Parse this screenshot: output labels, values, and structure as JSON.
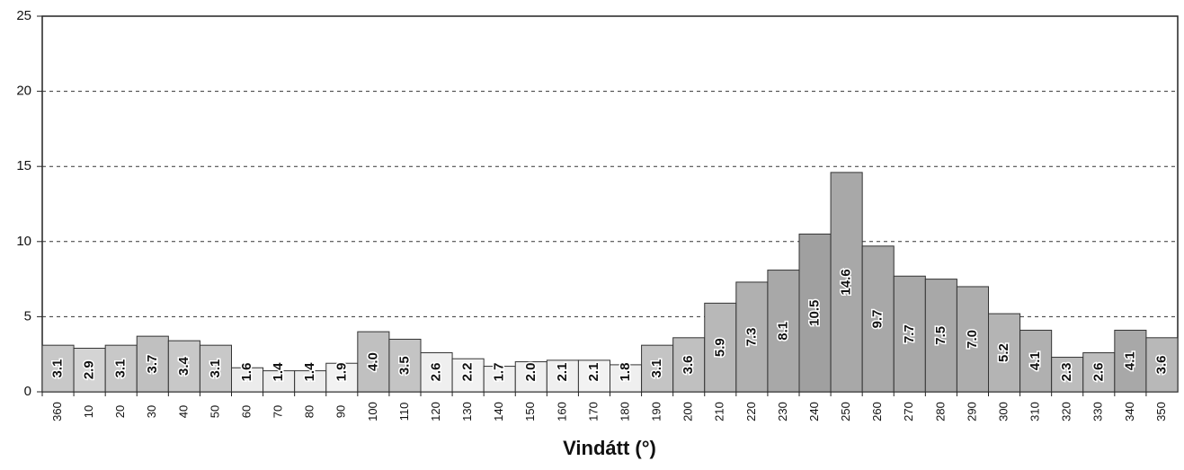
{
  "chart_data": {
    "type": "bar",
    "x_label": "Vindátt (°)",
    "categories": [
      "360",
      "10",
      "20",
      "30",
      "40",
      "50",
      "60",
      "70",
      "80",
      "90",
      "100",
      "110",
      "120",
      "130",
      "140",
      "150",
      "160",
      "170",
      "180",
      "190",
      "200",
      "210",
      "220",
      "230",
      "240",
      "250",
      "260",
      "270",
      "280",
      "290",
      "300",
      "310",
      "320",
      "330",
      "340",
      "350"
    ],
    "values": [
      3.1,
      2.9,
      3.1,
      3.7,
      3.4,
      3.1,
      1.6,
      1.4,
      1.4,
      1.9,
      4.0,
      3.5,
      2.6,
      2.2,
      1.7,
      2.0,
      2.1,
      2.1,
      1.8,
      3.1,
      3.6,
      5.9,
      7.3,
      8.1,
      10.5,
      14.6,
      9.7,
      7.7,
      7.5,
      7.0,
      5.2,
      4.1,
      2.3,
      2.6,
      4.1,
      3.6
    ],
    "value_labels": [
      "3.1",
      "2.9",
      "3.1",
      "3.7",
      "3.4",
      "3.1",
      "1.6",
      "1.4",
      "1.4",
      "1.9",
      "4.0",
      "3.5",
      "2.6",
      "2.2",
      "1.7",
      "2.0",
      "2.1",
      "2.1",
      "1.8",
      "3.1",
      "3.6",
      "5.9",
      "7.3",
      "8.1",
      "10.5",
      "14.6",
      "9.7",
      "7.7",
      "7.5",
      "7.0",
      "5.2",
      "4.1",
      "2.3",
      "2.6",
      "4.1",
      "3.6"
    ],
    "colors": [
      "#c8c8c8",
      "#d4d4d4",
      "#c8c8c8",
      "#c0c0c0",
      "#c8c8c8",
      "#c8c8c8",
      "#ececec",
      "#ececec",
      "#ececec",
      "#f2f2f2",
      "#c0c0c0",
      "#c4c4c4",
      "#efefef",
      "#f2f2f2",
      "#efefef",
      "#efefef",
      "#efefef",
      "#f2f2f2",
      "#efefef",
      "#c4c4c4",
      "#c0c0c0",
      "#b8b8b8",
      "#b0b0b0",
      "#a8a8a8",
      "#a0a0a0",
      "#a8a8a8",
      "#a8a8a8",
      "#a8a8a8",
      "#a8a8a8",
      "#adadad",
      "#b4b4b4",
      "#b0b0b0",
      "#bdbdbd",
      "#bdbdbd",
      "#a8a8a8",
      "#b8b8b8"
    ],
    "ylim": [
      0,
      25
    ],
    "yticks": [
      0,
      5,
      10,
      15,
      20,
      25
    ],
    "grid": true
  }
}
